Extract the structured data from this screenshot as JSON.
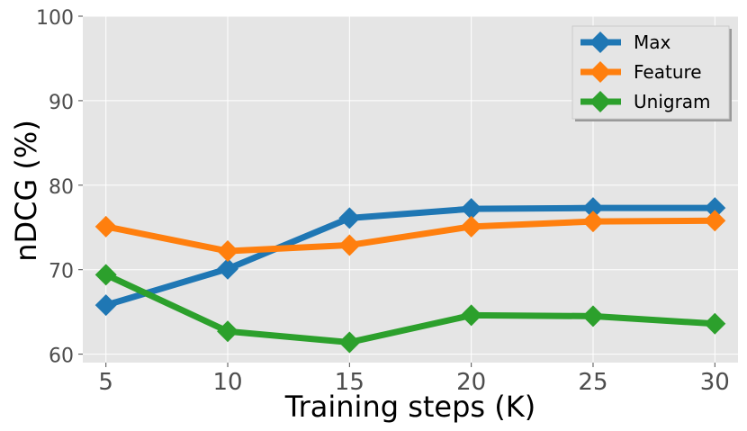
{
  "chart_data": {
    "type": "line",
    "xlabel": "Training steps (K)",
    "ylabel": "nDCG (%)",
    "x": [
      5,
      10,
      15,
      20,
      25,
      30
    ],
    "xticks": [
      "5",
      "10",
      "15",
      "20",
      "25",
      "30"
    ],
    "yticks": [
      "60",
      "70",
      "80",
      "90",
      "100"
    ],
    "ylim": [
      59,
      100
    ],
    "grid": true,
    "legend_position": "top-right",
    "series": [
      {
        "name": "Max",
        "color": "#1f77b4",
        "values": [
          65.8,
          70.1,
          76.1,
          77.2,
          77.3,
          77.3
        ]
      },
      {
        "name": "Feature",
        "color": "#ff7f0e",
        "values": [
          75.1,
          72.2,
          72.9,
          75.1,
          75.7,
          75.8
        ]
      },
      {
        "name": "Unigram",
        "color": "#2ca02c",
        "values": [
          69.4,
          62.7,
          61.4,
          64.6,
          64.5,
          63.6
        ]
      }
    ]
  }
}
